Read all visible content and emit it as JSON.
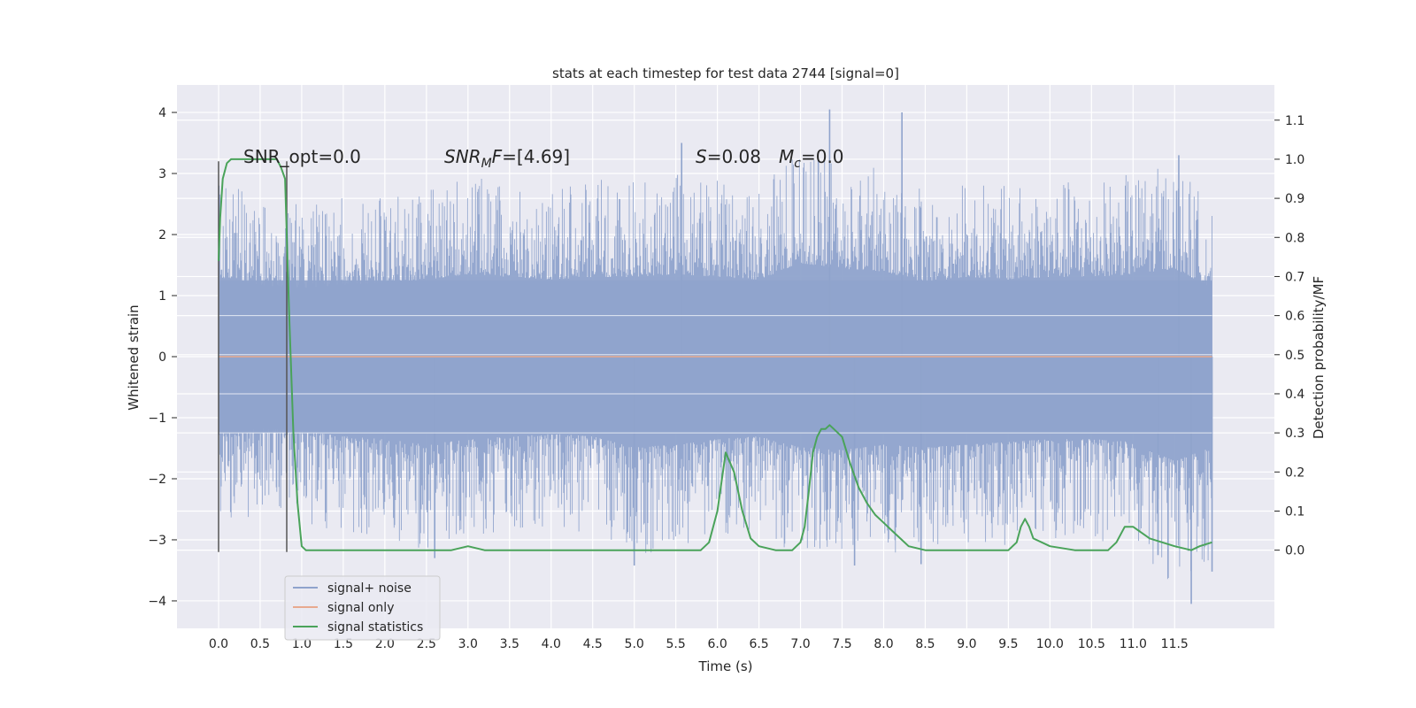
{
  "chart_data": {
    "type": "line",
    "title": "stats at each timestep for test data 2744 [signal=0]",
    "xlabel": "Time (s)",
    "ylabel": "Whitened strain",
    "y2label": "Detection probability/MF",
    "xlim": [
      -0.5,
      12.7
    ],
    "ylim": [
      -4.45,
      4.45
    ],
    "y2lim": [
      -0.2,
      1.19
    ],
    "xticks": [
      "0.0",
      "0.5",
      "1.0",
      "1.5",
      "2.0",
      "2.5",
      "3.0",
      "3.5",
      "4.0",
      "4.5",
      "5.0",
      "5.5",
      "6.0",
      "6.5",
      "7.0",
      "7.5",
      "8.0",
      "8.5",
      "9.0",
      "9.5",
      "10.0",
      "10.5",
      "11.0",
      "11.5"
    ],
    "yticks": [
      "4",
      "3",
      "2",
      "1",
      "0",
      "−1",
      "−2",
      "−3",
      "−4"
    ],
    "y2ticks": [
      "1.1",
      "1.0",
      "0.9",
      "0.8",
      "0.7",
      "0.6",
      "0.5",
      "0.4",
      "0.3",
      "0.2",
      "0.1",
      "0.0"
    ],
    "grid": true,
    "legend": {
      "position": "lower-left",
      "entries": [
        "signal+ noise",
        "signal only",
        "signal statistics"
      ]
    },
    "annotations": {
      "snr_opt": "SNR_opt=0.0",
      "snr_mf": "=[4.69]",
      "s_value": "=0.08",
      "mc_value": "=0.0"
    },
    "series": [
      {
        "name": "signal+ noise",
        "axis": "left",
        "color": "#8fa3cc",
        "envelope": {
          "t": [
            0.0,
            0.5,
            1.0,
            1.5,
            2.0,
            2.5,
            3.0,
            3.5,
            4.0,
            4.5,
            5.0,
            5.5,
            6.0,
            6.5,
            7.0,
            7.5,
            8.0,
            8.5,
            9.0,
            9.5,
            10.0,
            10.5,
            11.0,
            11.5,
            11.95
          ],
          "upper": [
            2.9,
            2.6,
            2.5,
            2.6,
            2.7,
            2.8,
            3.0,
            2.9,
            2.8,
            2.9,
            2.9,
            3.0,
            2.9,
            2.8,
            3.4,
            3.2,
            3.1,
            2.7,
            2.9,
            2.8,
            2.9,
            2.9,
            3.0,
            3.2,
            2.5
          ],
          "lower": [
            -2.8,
            -2.6,
            -2.7,
            -2.9,
            -3.0,
            -3.2,
            -3.0,
            -2.9,
            -2.8,
            -2.9,
            -3.3,
            -3.2,
            -3.0,
            -2.9,
            -3.3,
            -3.4,
            -3.2,
            -3.3,
            -3.2,
            -3.1,
            -3.0,
            -3.0,
            -3.1,
            -3.8,
            -3.3
          ]
        },
        "spikes": [
          {
            "t": 7.35,
            "y": 4.05
          },
          {
            "t": 8.22,
            "y": 4.0
          },
          {
            "t": 5.57,
            "y": 3.5
          },
          {
            "t": 11.7,
            "y": -4.05
          },
          {
            "t": 5.0,
            "y": -3.42
          },
          {
            "t": 7.65,
            "y": -3.42
          },
          {
            "t": 8.45,
            "y": -3.4
          },
          {
            "t": 11.95,
            "y": -3.52
          },
          {
            "t": 2.6,
            "y": -3.3
          },
          {
            "t": 11.55,
            "y": 3.3
          },
          {
            "t": 11.3,
            "y": -3.25
          }
        ]
      },
      {
        "name": "signal only",
        "axis": "left",
        "color": "#e8a98f",
        "x": [
          0.0,
          11.95
        ],
        "y": [
          0.0,
          0.0
        ]
      },
      {
        "name": "signal statistics",
        "axis": "right",
        "color": "#4aa35a",
        "x": [
          0.0,
          0.02,
          0.05,
          0.1,
          0.15,
          0.2,
          0.3,
          0.4,
          0.5,
          0.6,
          0.7,
          0.75,
          0.8,
          0.85,
          0.9,
          0.95,
          1.0,
          1.05,
          1.1,
          1.5,
          2.0,
          2.5,
          2.8,
          3.0,
          3.2,
          3.5,
          4.0,
          4.5,
          5.0,
          5.5,
          5.7,
          5.8,
          5.9,
          6.0,
          6.1,
          6.2,
          6.3,
          6.4,
          6.5,
          6.7,
          6.9,
          7.0,
          7.05,
          7.1,
          7.15,
          7.2,
          7.25,
          7.3,
          7.35,
          7.4,
          7.5,
          7.6,
          7.7,
          7.8,
          7.9,
          8.0,
          8.1,
          8.2,
          8.3,
          8.5,
          8.8,
          9.0,
          9.3,
          9.5,
          9.6,
          9.65,
          9.7,
          9.75,
          9.8,
          10.0,
          10.3,
          10.5,
          10.6,
          10.7,
          10.8,
          10.9,
          11.0,
          11.2,
          11.5,
          11.7,
          11.8,
          11.95
        ],
        "y": [
          0.74,
          0.85,
          0.95,
          0.99,
          1.0,
          1.0,
          1.0,
          1.0,
          1.0,
          1.0,
          1.0,
          0.98,
          0.95,
          0.6,
          0.3,
          0.12,
          0.01,
          0.0,
          0.0,
          0.0,
          0.0,
          0.0,
          0.0,
          0.01,
          0.0,
          0.0,
          0.0,
          0.0,
          0.0,
          0.0,
          0.0,
          0.0,
          0.02,
          0.1,
          0.25,
          0.2,
          0.1,
          0.03,
          0.01,
          0.0,
          0.0,
          0.02,
          0.06,
          0.15,
          0.25,
          0.29,
          0.31,
          0.31,
          0.32,
          0.31,
          0.29,
          0.22,
          0.16,
          0.12,
          0.09,
          0.07,
          0.05,
          0.03,
          0.01,
          0.0,
          0.0,
          0.0,
          0.0,
          0.0,
          0.02,
          0.06,
          0.08,
          0.06,
          0.03,
          0.01,
          0.0,
          0.0,
          0.0,
          0.0,
          0.02,
          0.06,
          0.06,
          0.03,
          0.01,
          0.0,
          0.01,
          0.02
        ]
      }
    ],
    "vlines": [
      0.0,
      0.82
    ]
  }
}
